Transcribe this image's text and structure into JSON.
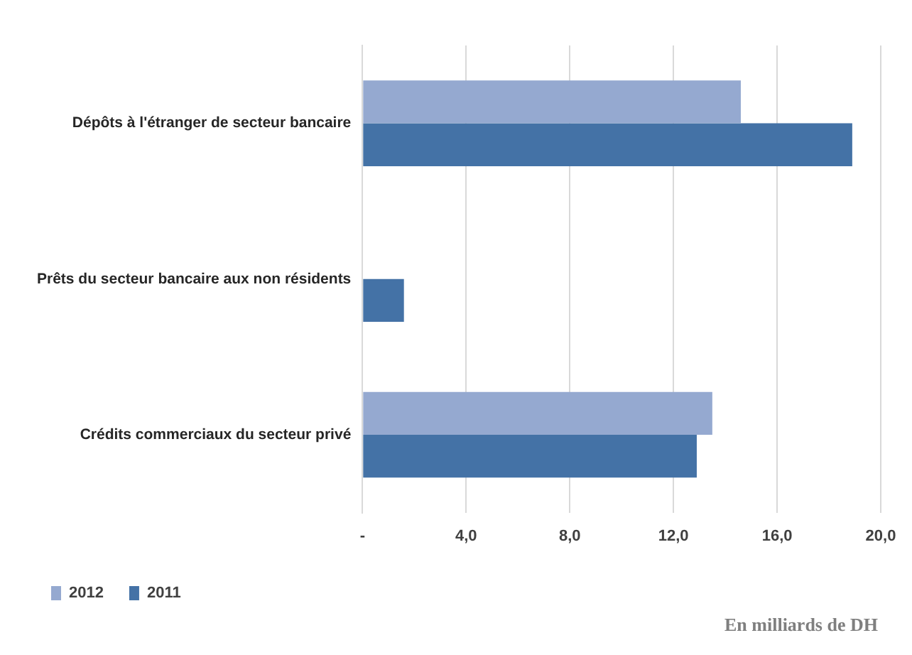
{
  "chart_data": {
    "type": "bar",
    "orientation": "horizontal",
    "categories": [
      "Dépôts à l'étranger de secteur bancaire",
      "Prêts du secteur bancaire aux non résidents",
      "Crédits commerciaux du secteur privé"
    ],
    "series": [
      {
        "name": "2012",
        "color": "#95a9d0",
        "values": [
          14.6,
          null,
          13.5
        ]
      },
      {
        "name": "2011",
        "color": "#4472a6",
        "values": [
          18.9,
          1.6,
          12.9
        ]
      }
    ],
    "xlim": [
      0,
      20
    ],
    "xticks": [
      {
        "value": 0,
        "label": "-"
      },
      {
        "value": 4,
        "label": "4,0"
      },
      {
        "value": 8,
        "label": "8,0"
      },
      {
        "value": 12,
        "label": "12,0"
      },
      {
        "value": 16,
        "label": "16,0"
      },
      {
        "value": 20,
        "label": "20,0"
      }
    ],
    "grid": "x",
    "legend": "bottom left",
    "annotations": [
      "En milliards de DH"
    ]
  }
}
